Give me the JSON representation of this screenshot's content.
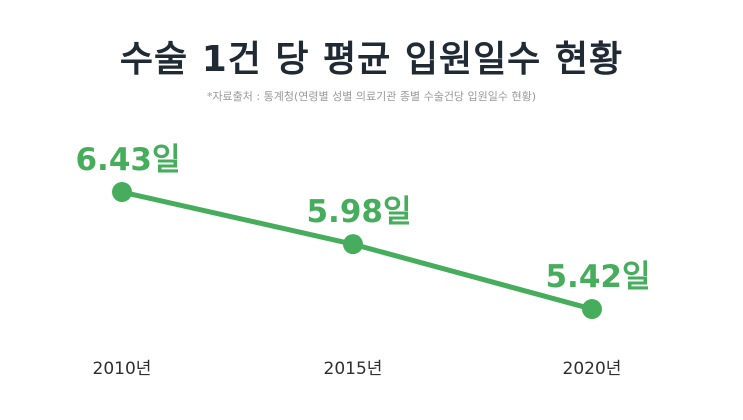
{
  "chart_data": {
    "type": "line",
    "title": "수술 1건 당 평균 입원일수 현황",
    "subtitle": "*자료출처 : 통계청(연령별 성별 의료기관 종별 수술건당 입원일수 현황)",
    "categories": [
      "2010년",
      "2015년",
      "2020년"
    ],
    "series": [
      {
        "values": [
          6.43,
          5.98,
          5.42
        ],
        "labels": [
          "6.43일",
          "5.98일",
          "5.42일"
        ],
        "color": "#45ad5c"
      }
    ],
    "grid": false,
    "legend": "none"
  }
}
